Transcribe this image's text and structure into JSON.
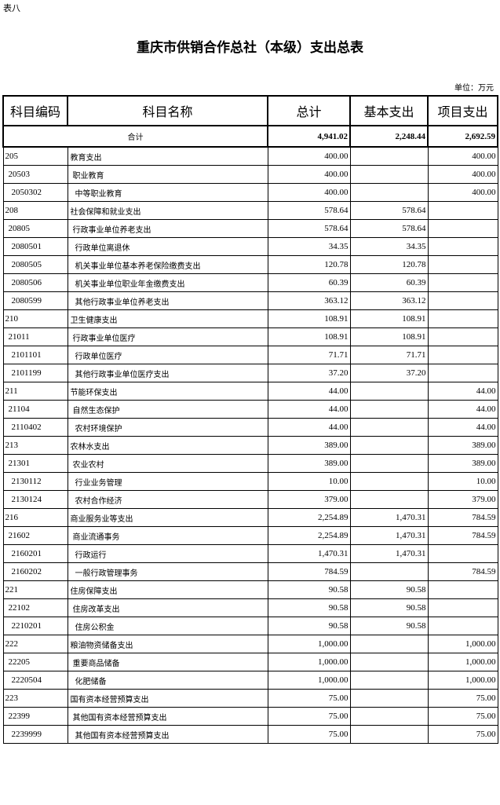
{
  "doc": {
    "tag": "表八",
    "title": "重庆市供销合作总社（本级）支出总表",
    "unit": "单位：万元"
  },
  "headers": [
    "科目编码",
    "科目名称",
    "总计",
    "基本支出",
    "项目支出"
  ],
  "total": {
    "label": "合计",
    "total": "4,941.02",
    "basic": "2,248.44",
    "project": "2,692.59"
  },
  "rows": [
    {
      "code": "205",
      "name": "教育支出",
      "total": "400.00",
      "basic": "",
      "project": "400.00",
      "level": 0
    },
    {
      "code": "20503",
      "name": "职业教育",
      "total": "400.00",
      "basic": "",
      "project": "400.00",
      "level": 1
    },
    {
      "code": "2050302",
      "name": "中等职业教育",
      "total": "400.00",
      "basic": "",
      "project": "400.00",
      "level": 2
    },
    {
      "code": "208",
      "name": "社会保障和就业支出",
      "total": "578.64",
      "basic": "578.64",
      "project": "",
      "level": 0
    },
    {
      "code": "20805",
      "name": "行政事业单位养老支出",
      "total": "578.64",
      "basic": "578.64",
      "project": "",
      "level": 1
    },
    {
      "code": "2080501",
      "name": "行政单位离退休",
      "total": "34.35",
      "basic": "34.35",
      "project": "",
      "level": 2
    },
    {
      "code": "2080505",
      "name": "机关事业单位基本养老保险缴费支出",
      "total": "120.78",
      "basic": "120.78",
      "project": "",
      "level": 2
    },
    {
      "code": "2080506",
      "name": "机关事业单位职业年金缴费支出",
      "total": "60.39",
      "basic": "60.39",
      "project": "",
      "level": 2
    },
    {
      "code": "2080599",
      "name": "其他行政事业单位养老支出",
      "total": "363.12",
      "basic": "363.12",
      "project": "",
      "level": 2
    },
    {
      "code": "210",
      "name": "卫生健康支出",
      "total": "108.91",
      "basic": "108.91",
      "project": "",
      "level": 0
    },
    {
      "code": "21011",
      "name": "行政事业单位医疗",
      "total": "108.91",
      "basic": "108.91",
      "project": "",
      "level": 1
    },
    {
      "code": "2101101",
      "name": "行政单位医疗",
      "total": "71.71",
      "basic": "71.71",
      "project": "",
      "level": 2
    },
    {
      "code": "2101199",
      "name": "其他行政事业单位医疗支出",
      "total": "37.20",
      "basic": "37.20",
      "project": "",
      "level": 2
    },
    {
      "code": "211",
      "name": "节能环保支出",
      "total": "44.00",
      "basic": "",
      "project": "44.00",
      "level": 0
    },
    {
      "code": "21104",
      "name": "自然生态保护",
      "total": "44.00",
      "basic": "",
      "project": "44.00",
      "level": 1
    },
    {
      "code": "2110402",
      "name": "农村环境保护",
      "total": "44.00",
      "basic": "",
      "project": "44.00",
      "level": 2
    },
    {
      "code": "213",
      "name": "农林水支出",
      "total": "389.00",
      "basic": "",
      "project": "389.00",
      "level": 0
    },
    {
      "code": "21301",
      "name": "农业农村",
      "total": "389.00",
      "basic": "",
      "project": "389.00",
      "level": 1
    },
    {
      "code": "2130112",
      "name": "行业业务管理",
      "total": "10.00",
      "basic": "",
      "project": "10.00",
      "level": 2
    },
    {
      "code": "2130124",
      "name": "农村合作经济",
      "total": "379.00",
      "basic": "",
      "project": "379.00",
      "level": 2
    },
    {
      "code": "216",
      "name": "商业服务业等支出",
      "total": "2,254.89",
      "basic": "1,470.31",
      "project": "784.59",
      "level": 0
    },
    {
      "code": "21602",
      "name": "商业流通事务",
      "total": "2,254.89",
      "basic": "1,470.31",
      "project": "784.59",
      "level": 1
    },
    {
      "code": "2160201",
      "name": "行政运行",
      "total": "1,470.31",
      "basic": "1,470.31",
      "project": "",
      "level": 2
    },
    {
      "code": "2160202",
      "name": "一般行政管理事务",
      "total": "784.59",
      "basic": "",
      "project": "784.59",
      "level": 2
    },
    {
      "code": "221",
      "name": "住房保障支出",
      "total": "90.58",
      "basic": "90.58",
      "project": "",
      "level": 0
    },
    {
      "code": "22102",
      "name": "住房改革支出",
      "total": "90.58",
      "basic": "90.58",
      "project": "",
      "level": 1
    },
    {
      "code": "2210201",
      "name": "住房公积金",
      "total": "90.58",
      "basic": "90.58",
      "project": "",
      "level": 2
    },
    {
      "code": "222",
      "name": "粮油物资储备支出",
      "total": "1,000.00",
      "basic": "",
      "project": "1,000.00",
      "level": 0
    },
    {
      "code": "22205",
      "name": "重要商品储备",
      "total": "1,000.00",
      "basic": "",
      "project": "1,000.00",
      "level": 1
    },
    {
      "code": "2220504",
      "name": "化肥储备",
      "total": "1,000.00",
      "basic": "",
      "project": "1,000.00",
      "level": 2
    },
    {
      "code": "223",
      "name": "国有资本经营预算支出",
      "total": "75.00",
      "basic": "",
      "project": "75.00",
      "level": 0
    },
    {
      "code": "22399",
      "name": "其他国有资本经营预算支出",
      "total": "75.00",
      "basic": "",
      "project": "75.00",
      "level": 1
    },
    {
      "code": "2239999",
      "name": "其他国有资本经营预算支出",
      "total": "75.00",
      "basic": "",
      "project": "75.00",
      "level": 2
    }
  ]
}
